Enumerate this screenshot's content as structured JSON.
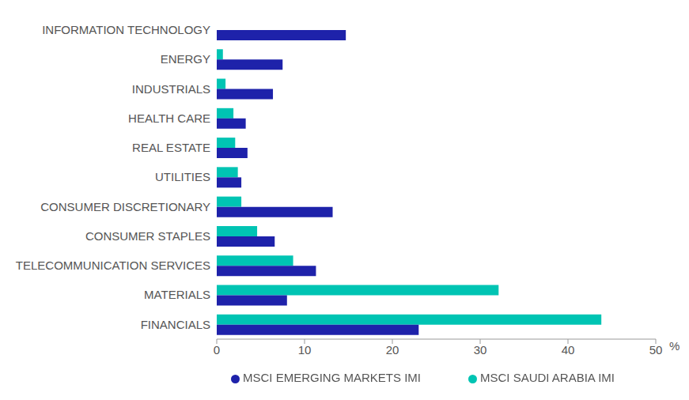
{
  "chart_data": {
    "type": "bar",
    "orientation": "horizontal",
    "xlabel": "%",
    "categories": [
      "INFORMATION TECHNOLOGY",
      "ENERGY",
      "INDUSTRIALS",
      "HEALTH CARE",
      "REAL ESTATE",
      "UTILITIES",
      "CONSUMER DISCRETIONARY",
      "CONSUMER STAPLES",
      "TELECOMMUNICATION SERVICES",
      "MATERIALS",
      "FINANCIALS"
    ],
    "series": [
      {
        "name": "MSCI SAUDI ARABIA IMI",
        "color": "#00c4b3",
        "values": [
          0,
          0.7,
          1.0,
          1.9,
          2.1,
          2.4,
          2.8,
          4.6,
          8.7,
          32.1,
          43.8
        ]
      },
      {
        "name": "MSCI EMERGING MARKETS IMI",
        "color": "#1e22aa",
        "values": [
          14.7,
          7.5,
          6.4,
          3.3,
          3.5,
          2.8,
          13.2,
          6.6,
          11.3,
          8.0,
          23.0
        ]
      }
    ],
    "xlim": [
      0,
      50
    ],
    "xticks": [
      0,
      10,
      20,
      30,
      40,
      50
    ],
    "grid": false,
    "legend": "bottom"
  }
}
